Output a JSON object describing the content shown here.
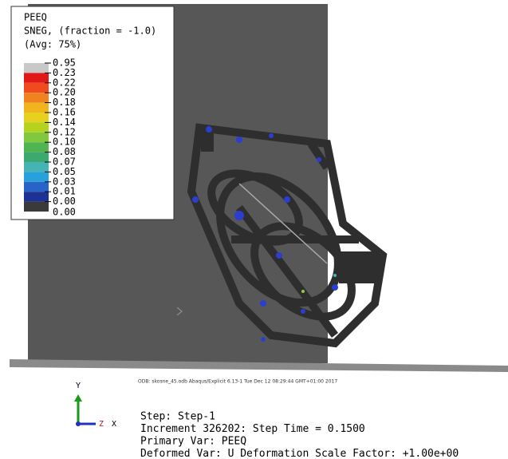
{
  "legend": {
    "title": [
      "PEEQ",
      "SNEG, (fraction = -1.0)",
      "(Avg: 75%)"
    ],
    "labels": [
      "0.95",
      "0.23",
      "0.22",
      "0.20",
      "0.18",
      "0.16",
      "0.14",
      "0.12",
      "0.10",
      "0.08",
      "0.07",
      "0.05",
      "0.03",
      "0.01",
      "0.00"
    ],
    "extra_label": "0.00",
    "colors": [
      "#c8c8c8",
      "#e01818",
      "#f04a1e",
      "#f08220",
      "#f0b41e",
      "#e6d21e",
      "#b4d21e",
      "#82c83c",
      "#50b450",
      "#3caa6e",
      "#46b4b4",
      "#28a0dc",
      "#2864c8",
      "#1e3296",
      "#3a3a3a"
    ]
  },
  "odb_line": "ODB: skosne_45.odb    Abaqus/Explicit 6.13-1    Tue Dec 12 08:29:44 GMT+01:00 2017",
  "triad": {
    "y": "Y",
    "z": "Z",
    "x": "X"
  },
  "step": [
    "Step: Step-1",
    "Increment    326202: Step Time =    0.1500",
    "Primary Var: PEEQ",
    "Deformed Var: U   Deformation Scale Factor: +1.00e+00"
  ]
}
